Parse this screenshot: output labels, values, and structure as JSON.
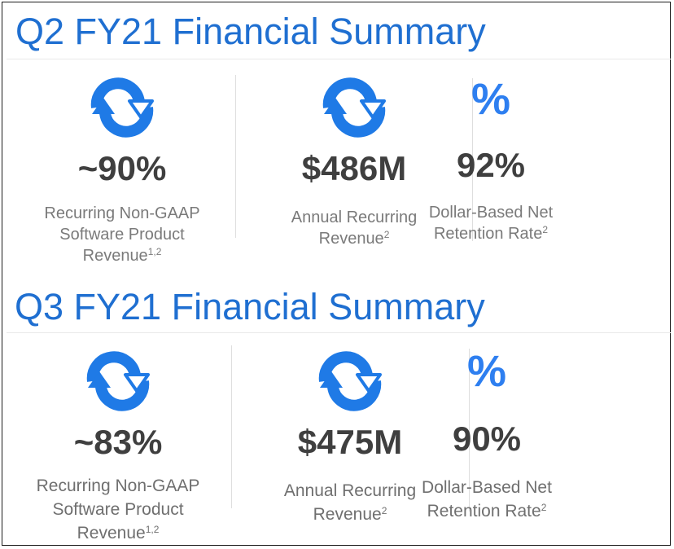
{
  "sections": [
    {
      "title": "Q2 FY21 Financial Summary",
      "metrics": [
        {
          "icon": "refresh-icon",
          "value": "~90%",
          "label_lines": [
            "Recurring Non-GAAP",
            "Software Product",
            "Revenue"
          ],
          "footnote": "1,2"
        },
        {
          "icon": "refresh-icon",
          "value": "$486M",
          "label_lines": [
            "Annual Recurring",
            "Revenue"
          ],
          "footnote": "2"
        },
        {
          "icon": "percent-icon",
          "icon_glyph": "%",
          "value": "92%",
          "label_lines": [
            "Dollar-Based Net",
            "Retention Rate"
          ],
          "footnote": "2"
        }
      ]
    },
    {
      "title": "Q3 FY21 Financial Summary",
      "metrics": [
        {
          "icon": "refresh-icon",
          "value": "~83%",
          "label_lines": [
            "Recurring Non-GAAP",
            "Software Product",
            "Revenue"
          ],
          "footnote": "1,2"
        },
        {
          "icon": "refresh-icon",
          "value": "$475M",
          "label_lines": [
            "Annual Recurring",
            "Revenue"
          ],
          "footnote": "2"
        },
        {
          "icon": "percent-icon",
          "icon_glyph": "%",
          "value": "90%",
          "label_lines": [
            "Dollar-Based Net",
            "Retention Rate"
          ],
          "footnote": "2"
        }
      ]
    }
  ],
  "colors": {
    "title": "#1f6fd1",
    "icon": "#1f7ae6",
    "value": "#3f3f3f",
    "label": "#7a7a7a"
  }
}
